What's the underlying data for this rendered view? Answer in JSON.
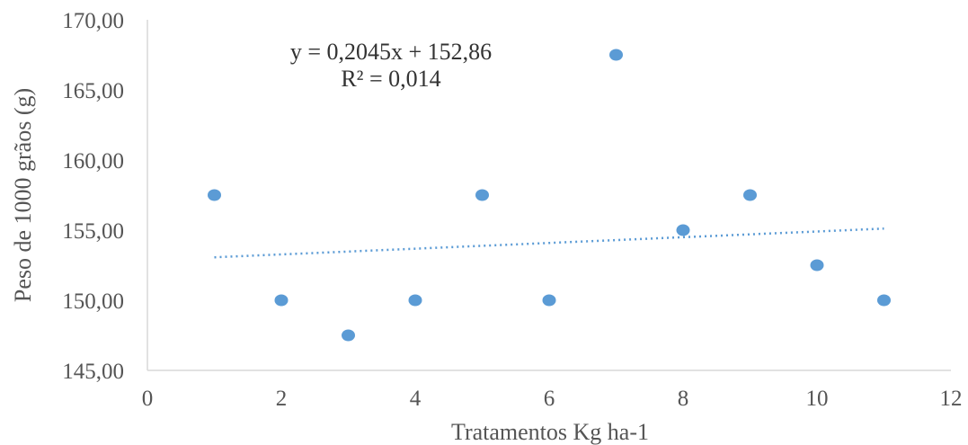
{
  "chart_data": {
    "type": "scatter",
    "title": "",
    "xlabel": "Tratamentos Kg ha-1",
    "ylabel": "Peso de 1000 grãos (g)",
    "xlim": [
      0,
      12
    ],
    "ylim": [
      145,
      170
    ],
    "x_ticks": [
      0,
      2,
      4,
      6,
      8,
      10,
      12
    ],
    "y_ticks": [
      145,
      150,
      155,
      160,
      165,
      170
    ],
    "y_tick_labels": [
      "145,00",
      "150,00",
      "155,00",
      "160,00",
      "165,00",
      "170,00"
    ],
    "grid": false,
    "legend": "none",
    "series": [
      {
        "points": [
          {
            "x": 1,
            "y": 157.5
          },
          {
            "x": 2,
            "y": 150.0
          },
          {
            "x": 3,
            "y": 147.5
          },
          {
            "x": 4,
            "y": 150.0
          },
          {
            "x": 5,
            "y": 157.5
          },
          {
            "x": 6,
            "y": 150.0
          },
          {
            "x": 7,
            "y": 167.5
          },
          {
            "x": 8,
            "y": 155.0
          },
          {
            "x": 9,
            "y": 157.5
          },
          {
            "x": 10,
            "y": 152.5
          },
          {
            "x": 11,
            "y": 150.0
          }
        ],
        "color": "#5b9bd5"
      }
    ],
    "trendline": {
      "type": "linear",
      "slope": 0.2045,
      "intercept": 152.86,
      "x_range": [
        1,
        11
      ],
      "equation": "y = 0,2045x  + 152,86",
      "r_squared": "R² = 0,014",
      "color": "#5b9bd5",
      "style": "dotted"
    }
  }
}
